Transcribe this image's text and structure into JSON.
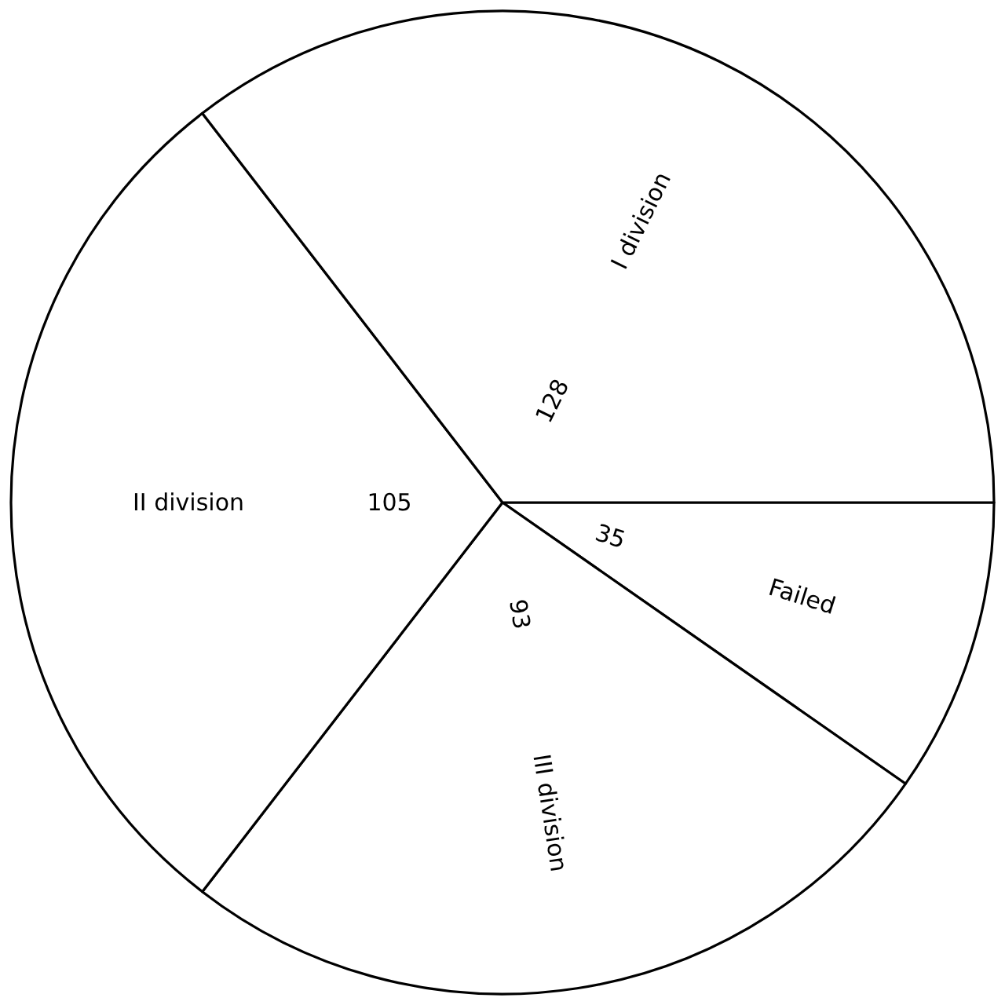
{
  "chart_data": {
    "type": "pie",
    "categories": [
      "Failed",
      "III division",
      "II division",
      "I division"
    ],
    "values": [
      35,
      93,
      105,
      128
    ],
    "colors": [
      "#ffffff",
      "#ffffff",
      "#ffffff",
      "#ffffff"
    ],
    "data_labels": true
  }
}
